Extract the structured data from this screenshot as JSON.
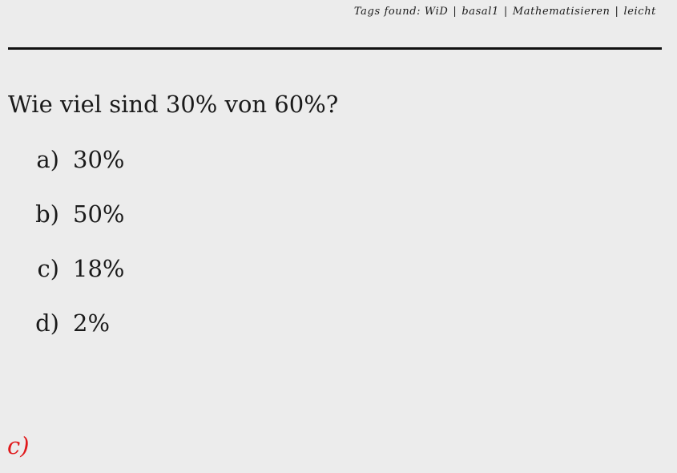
{
  "header": {
    "tags_label": "Tags found:",
    "tags": [
      "WiD",
      "basal1",
      "Mathematisieren",
      "leicht"
    ]
  },
  "question": {
    "text": "Wie viel sind 30% von 60%?"
  },
  "options": [
    {
      "letter": "a)",
      "value": "30%"
    },
    {
      "letter": "b)",
      "value": "50%"
    },
    {
      "letter": "c)",
      "value": "18%"
    },
    {
      "letter": "d)",
      "value": "2%"
    }
  ],
  "answer": {
    "text": "c)",
    "color": "#e0191b"
  }
}
